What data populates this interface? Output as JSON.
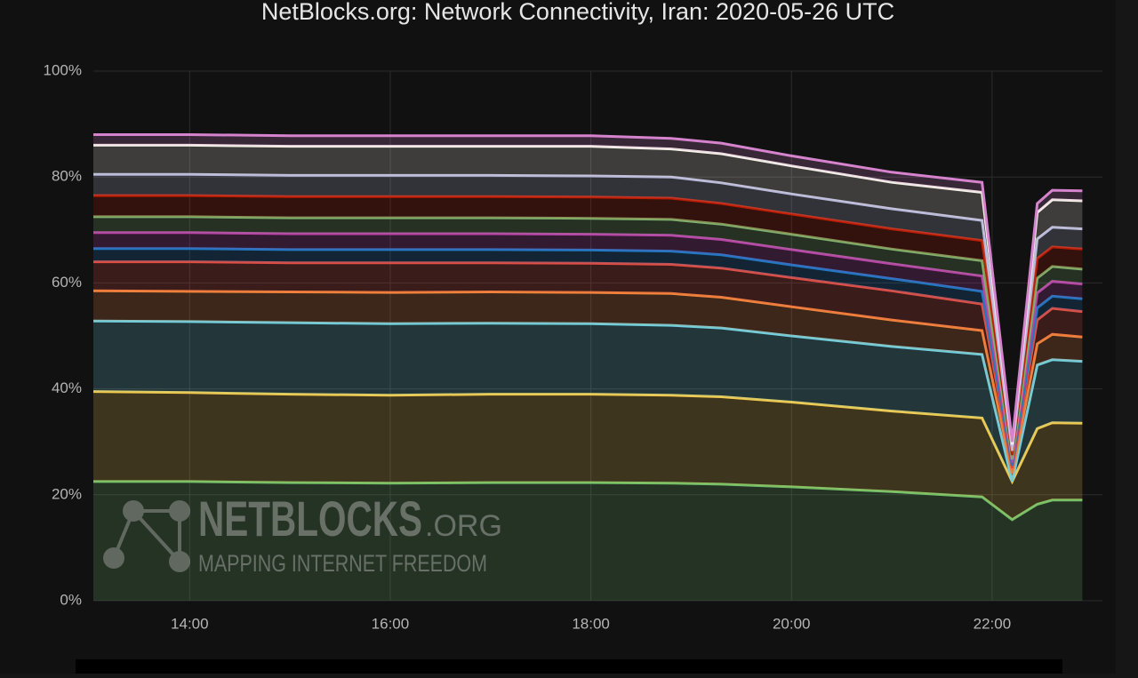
{
  "chart_data": {
    "type": "stacked_area",
    "title": "NetBlocks.org: Network Connectivity, Iran: 2020-05-26 UTC",
    "watermark": {
      "brand": "NETBLOCKS",
      "domain": ".ORG",
      "tagline": "MAPPING INTERNET FREEDOM"
    },
    "x": [
      13.04,
      14,
      15,
      16,
      17,
      18,
      18.8,
      19.3,
      20,
      21,
      21.9,
      22.2,
      22.45,
      22.6,
      22.9
    ],
    "xlim": [
      13.04,
      23.1
    ],
    "xticks": [
      {
        "value": 14,
        "label": "14:00"
      },
      {
        "value": 16,
        "label": "16:00"
      },
      {
        "value": 18,
        "label": "18:00"
      },
      {
        "value": 20,
        "label": "20:00"
      },
      {
        "value": 22,
        "label": "22:00"
      }
    ],
    "ylim": [
      0,
      100
    ],
    "yticks": [
      {
        "value": 0,
        "label": "0%"
      },
      {
        "value": 20,
        "label": "20%"
      },
      {
        "value": 40,
        "label": "40%"
      },
      {
        "value": 60,
        "label": "60%"
      },
      {
        "value": 80,
        "label": "80%"
      },
      {
        "value": 100,
        "label": "100%"
      }
    ],
    "grid": true,
    "series": [
      {
        "color": "#73bf69",
        "values": [
          22.5,
          22.5,
          22.3,
          22.2,
          22.3,
          22.3,
          22.2,
          22,
          21.5,
          20.6,
          19.6,
          15.3,
          18.2,
          19,
          19
        ]
      },
      {
        "color": "#f2c94c",
        "values": [
          17,
          16.8,
          16.7,
          16.6,
          16.7,
          16.7,
          16.6,
          16.5,
          16,
          15.2,
          14.9,
          7.2,
          14.3,
          14.6,
          14.5
        ]
      },
      {
        "color": "#6ed0e0",
        "values": [
          13.3,
          13.4,
          13.5,
          13.5,
          13.4,
          13.3,
          13.2,
          13,
          12.5,
          12.2,
          12,
          0,
          12,
          11.9,
          11.7
        ]
      },
      {
        "color": "#ef843c",
        "values": [
          5.7,
          5.7,
          5.8,
          5.9,
          5.9,
          5.9,
          6,
          5.8,
          5.5,
          5,
          4.5,
          1.5,
          4,
          4.8,
          4.6
        ]
      },
      {
        "color": "#e24d42",
        "values": [
          5.5,
          5.6,
          5.5,
          5.6,
          5.5,
          5.5,
          5.5,
          5.5,
          5.5,
          5.5,
          5,
          1,
          4.5,
          4.9,
          4.8
        ]
      },
      {
        "color": "#1f78c1",
        "values": [
          2.5,
          2.5,
          2.5,
          2.5,
          2.5,
          2.5,
          2.5,
          2.5,
          2.4,
          2.3,
          2.4,
          0.5,
          2.3,
          2.3,
          2.4
        ]
      },
      {
        "color": "#ba43a9",
        "values": [
          3,
          3,
          3,
          3,
          3,
          3,
          3,
          2.9,
          2.9,
          2.8,
          2.9,
          0.6,
          2.8,
          2.8,
          2.8
        ]
      },
      {
        "color": "#7eb26d",
        "values": [
          3,
          3,
          3,
          3,
          3,
          3,
          3,
          2.9,
          2.9,
          2.8,
          2.9,
          0.6,
          2.8,
          2.8,
          2.8
        ]
      },
      {
        "color": "#bf1b00",
        "values": [
          4,
          4,
          4,
          4,
          4,
          4,
          4,
          3.9,
          3.8,
          3.8,
          3.8,
          0.8,
          3.7,
          3.7,
          3.8
        ]
      },
      {
        "color": "#b7b7d8",
        "values": [
          4,
          4,
          4,
          4,
          4,
          4,
          4,
          3.9,
          3.8,
          3.8,
          3.8,
          0.8,
          3.7,
          3.7,
          3.8
        ]
      },
      {
        "color": "#f4f1e8",
        "values": [
          5.5,
          5.5,
          5.5,
          5.5,
          5.5,
          5.6,
          5.3,
          5.5,
          5.3,
          5,
          5.3,
          1.2,
          5,
          5.2,
          5.3
        ]
      },
      {
        "color": "#d683ce",
        "values": [
          2,
          2,
          2,
          2,
          2,
          2,
          2,
          2,
          1.9,
          1.9,
          1.9,
          0.5,
          1.7,
          1.8,
          1.9
        ]
      }
    ]
  }
}
